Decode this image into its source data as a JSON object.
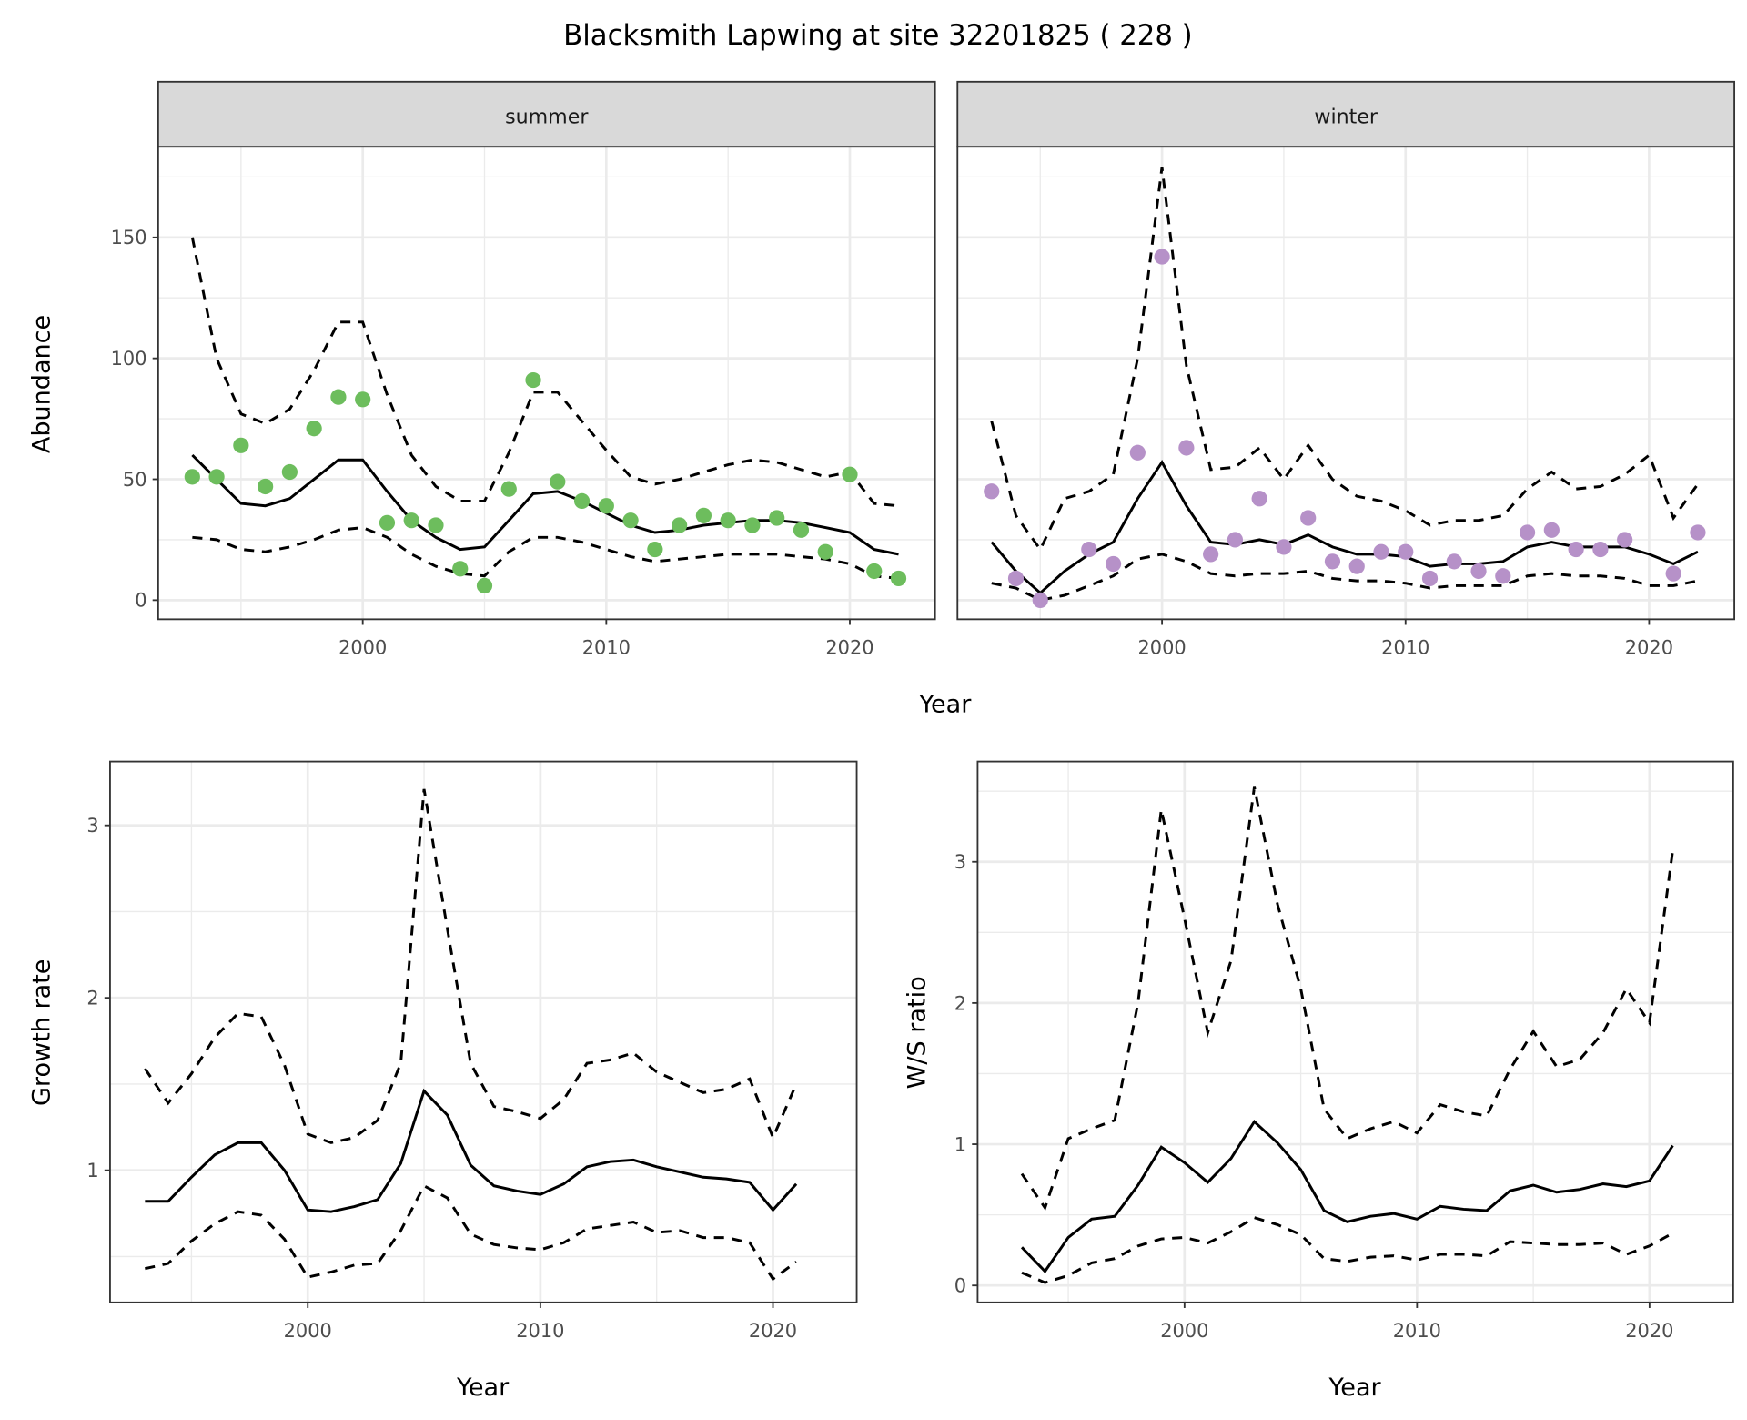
{
  "title": "Blacksmith Lapwing at site 32201825 ( 228 )",
  "colors": {
    "summer": "#6dbd5d",
    "winter": "#b691c8",
    "line": "#000000",
    "grid": "#ebebeb",
    "strip": "#d9d9d9",
    "border": "#333333"
  },
  "top_row": {
    "xlabel": "Year",
    "ylabel": "Abundance"
  },
  "chart_data": [
    {
      "type": "line",
      "facet": "summer",
      "strip": "summer",
      "xlim": [
        1991.6,
        2023.5
      ],
      "ylim": [
        -7.9,
        187.5
      ],
      "xticks": [
        2000,
        2010,
        2020
      ],
      "yticks": [
        0,
        50,
        100,
        150
      ],
      "grid": true,
      "x": [
        1993,
        1994,
        1995,
        1996,
        1997,
        1998,
        1999,
        2000,
        2001,
        2002,
        2003,
        2004,
        2005,
        2006,
        2007,
        2008,
        2009,
        2010,
        2011,
        2012,
        2013,
        2014,
        2015,
        2016,
        2017,
        2018,
        2019,
        2020,
        2021,
        2022
      ],
      "points": [
        51,
        51,
        64,
        47,
        53,
        71,
        84,
        83,
        32,
        33,
        31,
        13,
        6,
        46,
        91,
        49,
        41,
        39,
        33,
        21,
        31,
        35,
        33,
        31,
        34,
        29,
        20,
        52,
        12,
        9
      ],
      "mean": [
        60,
        50,
        40,
        39,
        42,
        50,
        58,
        58,
        45,
        33,
        26,
        21,
        22,
        33,
        44,
        45,
        41,
        36,
        31,
        28,
        29,
        31,
        32,
        33,
        33,
        32,
        30,
        28,
        21,
        19
      ],
      "upper": [
        150,
        100,
        77,
        73,
        79,
        95,
        115,
        115,
        85,
        60,
        47,
        41,
        41,
        61,
        86,
        86,
        74,
        62,
        51,
        48,
        50,
        53,
        56,
        58,
        57,
        54,
        51,
        53,
        40,
        39
      ],
      "lower": [
        26,
        25,
        21,
        20,
        22,
        25,
        29,
        30,
        26,
        19,
        14,
        11,
        10,
        20,
        26,
        26,
        24,
        21,
        18,
        16,
        17,
        18,
        19,
        19,
        19,
        18,
        17,
        15,
        10,
        9
      ]
    },
    {
      "type": "line",
      "facet": "winter",
      "strip": "winter",
      "xlim": [
        1991.6,
        2023.5
      ],
      "ylim": [
        -7.9,
        187.5
      ],
      "xticks": [
        2000,
        2010,
        2020
      ],
      "yticks": [
        0,
        50,
        100,
        150
      ],
      "grid": true,
      "x": [
        1993,
        1994,
        1995,
        1996,
        1997,
        1998,
        1999,
        2000,
        2001,
        2002,
        2003,
        2004,
        2005,
        2006,
        2007,
        2008,
        2009,
        2010,
        2011,
        2012,
        2013,
        2014,
        2015,
        2016,
        2017,
        2018,
        2019,
        2020,
        2021,
        2022
      ],
      "points": [
        45,
        9,
        0,
        null,
        21,
        15,
        61,
        142,
        63,
        19,
        25,
        42,
        22,
        34,
        16,
        14,
        20,
        20,
        9,
        16,
        12,
        10,
        28,
        29,
        21,
        21,
        25,
        null,
        11,
        28
      ],
      "mean": [
        24,
        12,
        3,
        12,
        19,
        24,
        42,
        57,
        39,
        24,
        23,
        25,
        23,
        27,
        22,
        19,
        19,
        18,
        14,
        15,
        15,
        16,
        22,
        24,
        22,
        22,
        22,
        19,
        15,
        20
      ],
      "upper": [
        74,
        35,
        21,
        42,
        45,
        52,
        100,
        179,
        97,
        54,
        55,
        63,
        50,
        64,
        50,
        43,
        41,
        37,
        31,
        33,
        33,
        35,
        46,
        53,
        46,
        47,
        52,
        60,
        34,
        48
      ],
      "lower": [
        7,
        5,
        0,
        2,
        6,
        10,
        17,
        19,
        16,
        11,
        10,
        11,
        11,
        12,
        9,
        8,
        8,
        7,
        5,
        6,
        6,
        6,
        10,
        11,
        10,
        10,
        9,
        6,
        6,
        8
      ]
    },
    {
      "type": "line",
      "xlabel": "Year",
      "ylabel": "Growth rate",
      "xlim": [
        1991.5,
        2023.6
      ],
      "ylim": [
        0.234,
        3.37
      ],
      "xticks": [
        2000,
        2010,
        2020
      ],
      "yticks": [
        1,
        2,
        3
      ],
      "grid": true,
      "x": [
        1993,
        1994,
        1995,
        1996,
        1997,
        1998,
        1999,
        2000,
        2001,
        2002,
        2003,
        2004,
        2005,
        2006,
        2007,
        2008,
        2009,
        2010,
        2011,
        2012,
        2013,
        2014,
        2015,
        2016,
        2017,
        2018,
        2019,
        2020,
        2021
      ],
      "mean": [
        0.82,
        0.82,
        0.96,
        1.09,
        1.16,
        1.16,
        1.0,
        0.77,
        0.76,
        0.79,
        0.83,
        1.04,
        1.46,
        1.32,
        1.03,
        0.91,
        0.88,
        0.86,
        0.92,
        1.02,
        1.05,
        1.06,
        1.02,
        0.99,
        0.96,
        0.95,
        0.93,
        0.77,
        0.92
      ],
      "upper": [
        1.59,
        1.39,
        1.56,
        1.77,
        1.91,
        1.89,
        1.61,
        1.21,
        1.16,
        1.19,
        1.29,
        1.62,
        3.21,
        2.4,
        1.62,
        1.37,
        1.34,
        1.3,
        1.41,
        1.62,
        1.64,
        1.68,
        1.57,
        1.51,
        1.45,
        1.47,
        1.53,
        1.19,
        1.5
      ],
      "lower": [
        0.43,
        0.46,
        0.59,
        0.69,
        0.76,
        0.74,
        0.6,
        0.38,
        0.41,
        0.45,
        0.46,
        0.65,
        0.91,
        0.84,
        0.63,
        0.57,
        0.55,
        0.54,
        0.58,
        0.66,
        0.68,
        0.7,
        0.64,
        0.65,
        0.61,
        0.61,
        0.58,
        0.37,
        0.47
      ]
    },
    {
      "type": "line",
      "xlabel": "Year",
      "ylabel": "W/S ratio",
      "xlim": [
        1991.1,
        2023.6
      ],
      "ylim": [
        -0.12,
        3.71
      ],
      "xticks": [
        2000,
        2010,
        2020
      ],
      "yticks": [
        0,
        1,
        2,
        3
      ],
      "grid": true,
      "x": [
        1993,
        1994,
        1995,
        1996,
        1997,
        1998,
        1999,
        2000,
        2001,
        2002,
        2003,
        2004,
        2005,
        2006,
        2007,
        2008,
        2009,
        2010,
        2011,
        2012,
        2013,
        2014,
        2015,
        2016,
        2017,
        2018,
        2019,
        2020,
        2021
      ],
      "mean": [
        0.27,
        0.1,
        0.34,
        0.47,
        0.49,
        0.71,
        0.98,
        0.87,
        0.73,
        0.9,
        1.16,
        1.01,
        0.82,
        0.53,
        0.45,
        0.49,
        0.51,
        0.47,
        0.56,
        0.54,
        0.53,
        0.67,
        0.71,
        0.66,
        0.68,
        0.72,
        0.7,
        0.74,
        0.99
      ],
      "upper": [
        0.79,
        0.55,
        1.04,
        1.11,
        1.17,
        2.0,
        3.37,
        2.6,
        1.79,
        2.3,
        3.53,
        2.7,
        2.1,
        1.25,
        1.04,
        1.11,
        1.16,
        1.08,
        1.28,
        1.23,
        1.2,
        1.53,
        1.8,
        1.55,
        1.6,
        1.79,
        2.1,
        1.86,
        3.08
      ],
      "lower": [
        0.09,
        0.02,
        0.07,
        0.16,
        0.19,
        0.28,
        0.33,
        0.34,
        0.3,
        0.38,
        0.48,
        0.43,
        0.36,
        0.19,
        0.17,
        0.2,
        0.21,
        0.18,
        0.22,
        0.22,
        0.21,
        0.31,
        0.3,
        0.29,
        0.29,
        0.3,
        0.22,
        0.28,
        0.37
      ]
    }
  ]
}
